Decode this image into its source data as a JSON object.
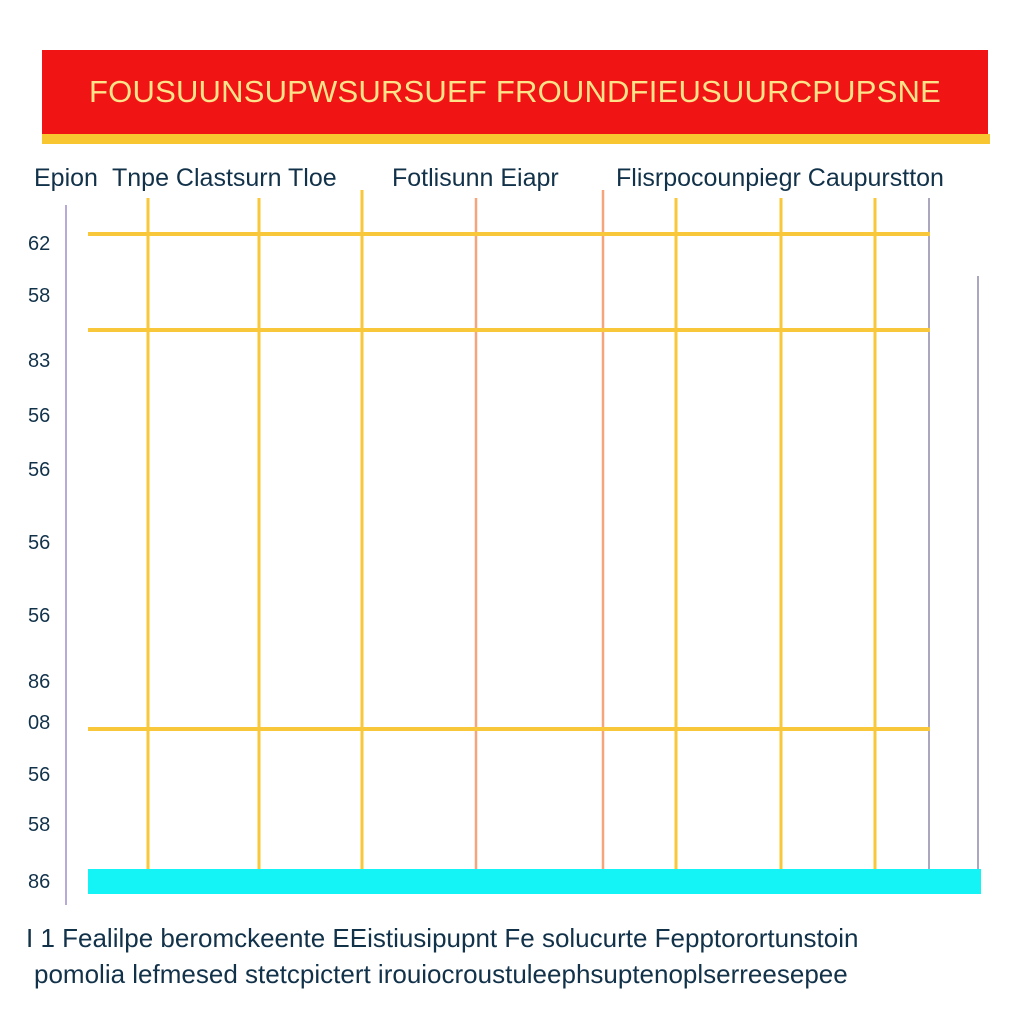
{
  "header": {
    "title": "FOUSUUNSUPWSURSUEF FROUNDFIEUSUURCPUPSNE"
  },
  "columns": [
    {
      "label": "Epion"
    },
    {
      "label": "Tnpe Clastsurn Tloe"
    },
    {
      "label": "Fotlisunn Eiapr"
    },
    {
      "label": "Flisrpocounpiegr Caupurstton"
    }
  ],
  "rows": [
    {
      "label": "62"
    },
    {
      "label": "58"
    },
    {
      "label": "83"
    },
    {
      "label": "56"
    },
    {
      "label": "56"
    },
    {
      "label": "56"
    },
    {
      "label": "56"
    },
    {
      "label": "86"
    },
    {
      "label": "08"
    },
    {
      "label": "56"
    },
    {
      "label": "58"
    },
    {
      "label": "86"
    }
  ],
  "footer": {
    "line1": "I 1 Fealilpe beromckeente EEistiusipupnt Fe solucurte Fepptorortunstoin",
    "line2": "pomolia lefmesed stetcpictert irouiocroustuleephsuptenoplserreesepee"
  },
  "colors": {
    "header_bg": "#f01414",
    "header_text": "#ffe38a",
    "accent_underline": "#f7c631",
    "grid_yellow": "#f9c73a",
    "grid_orange": "#f6a57a",
    "bottom_bar": "#14f3f6",
    "text_dark": "#12324a"
  },
  "icons": []
}
